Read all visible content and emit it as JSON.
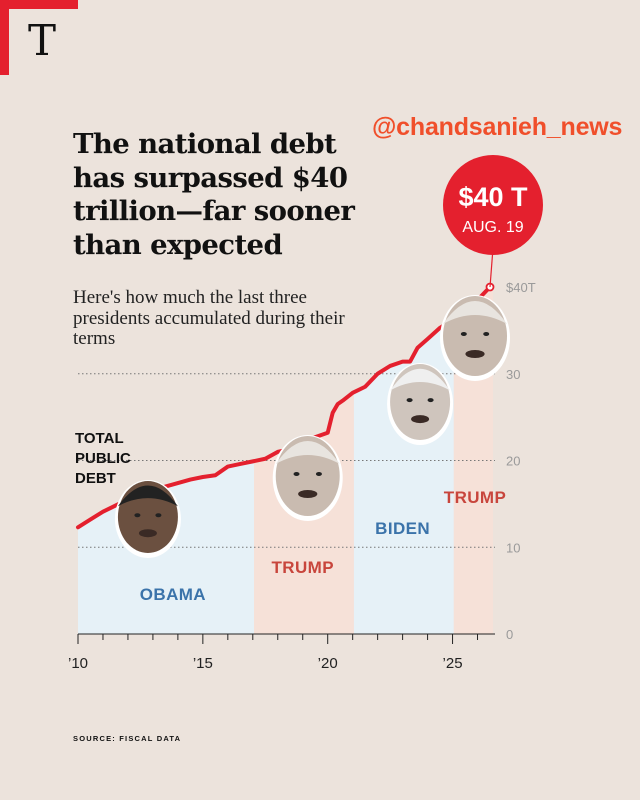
{
  "brand": {
    "logo_text": "T",
    "accent": "#e4202e"
  },
  "watermark": "@chandsanieh_news",
  "headline": "The national debt has surpassed $40 trillion—far sooner than expected",
  "subhead": "Here's how much the last three presidents accumulated during their terms",
  "source": "SOURCE: FISCAL DATA",
  "callout": {
    "value": "$40 T",
    "date": "AUG. 19",
    "color": "#e4202e"
  },
  "colors": {
    "line": "#e4202e",
    "democrat_fill": "#e6f1f7",
    "republican_fill": "#f6e1d8",
    "democrat_text": "#3b73aa",
    "republican_text": "#c8453c"
  },
  "chart_data": {
    "type": "area",
    "ylabel": "TOTAL PUBLIC DEBT",
    "ylim": [
      0,
      40
    ],
    "xlim": [
      2010,
      2026.7
    ],
    "y_ticks": [
      {
        "value": 0,
        "label": "0"
      },
      {
        "value": 10,
        "label": "10"
      },
      {
        "value": 20,
        "label": "20"
      },
      {
        "value": 30,
        "label": "30"
      },
      {
        "value": 40,
        "label": "$40T"
      }
    ],
    "x_ticks": [
      {
        "value": 2010,
        "label": "’10"
      },
      {
        "value": 2015,
        "label": "’15"
      },
      {
        "value": 2020,
        "label": "’20"
      },
      {
        "value": 2025,
        "label": "’25"
      }
    ],
    "grid": "dotted horizontal",
    "series": [
      {
        "x": [
          2010.0,
          2010.5,
          2011.0,
          2011.5,
          2012.0,
          2012.5,
          2013.0,
          2013.5,
          2014.0,
          2014.5,
          2015.0,
          2015.5,
          2016.0,
          2016.5,
          2017.0,
          2017.5,
          2018.0,
          2018.5,
          2019.0,
          2019.5,
          2020.0,
          2020.2,
          2020.4,
          2020.6,
          2021.0,
          2021.5,
          2022.0,
          2022.5,
          2023.0,
          2023.3,
          2023.6,
          2024.0,
          2024.5,
          2025.0,
          2025.5,
          2026.0,
          2026.5
        ],
        "y": [
          12.3,
          13.2,
          14.1,
          14.8,
          15.5,
          16.0,
          16.7,
          17.0,
          17.4,
          17.8,
          18.1,
          18.3,
          19.3,
          19.6,
          19.9,
          20.2,
          21.0,
          21.3,
          22.0,
          22.7,
          23.2,
          25.5,
          26.5,
          26.9,
          27.8,
          28.5,
          30.0,
          30.9,
          31.4,
          31.4,
          33.0,
          34.0,
          35.3,
          36.2,
          37.1,
          38.5,
          40.0
        ]
      }
    ],
    "terms": [
      {
        "name": "OBAMA",
        "party": "D",
        "start": 2010.0,
        "end": 2017.05
      },
      {
        "name": "TRUMP",
        "party": "R",
        "start": 2017.05,
        "end": 2021.05
      },
      {
        "name": "BIDEN",
        "party": "D",
        "start": 2021.05,
        "end": 2025.05
      },
      {
        "name": "TRUMP",
        "party": "R",
        "start": 2025.05,
        "end": 2026.62
      }
    ]
  }
}
